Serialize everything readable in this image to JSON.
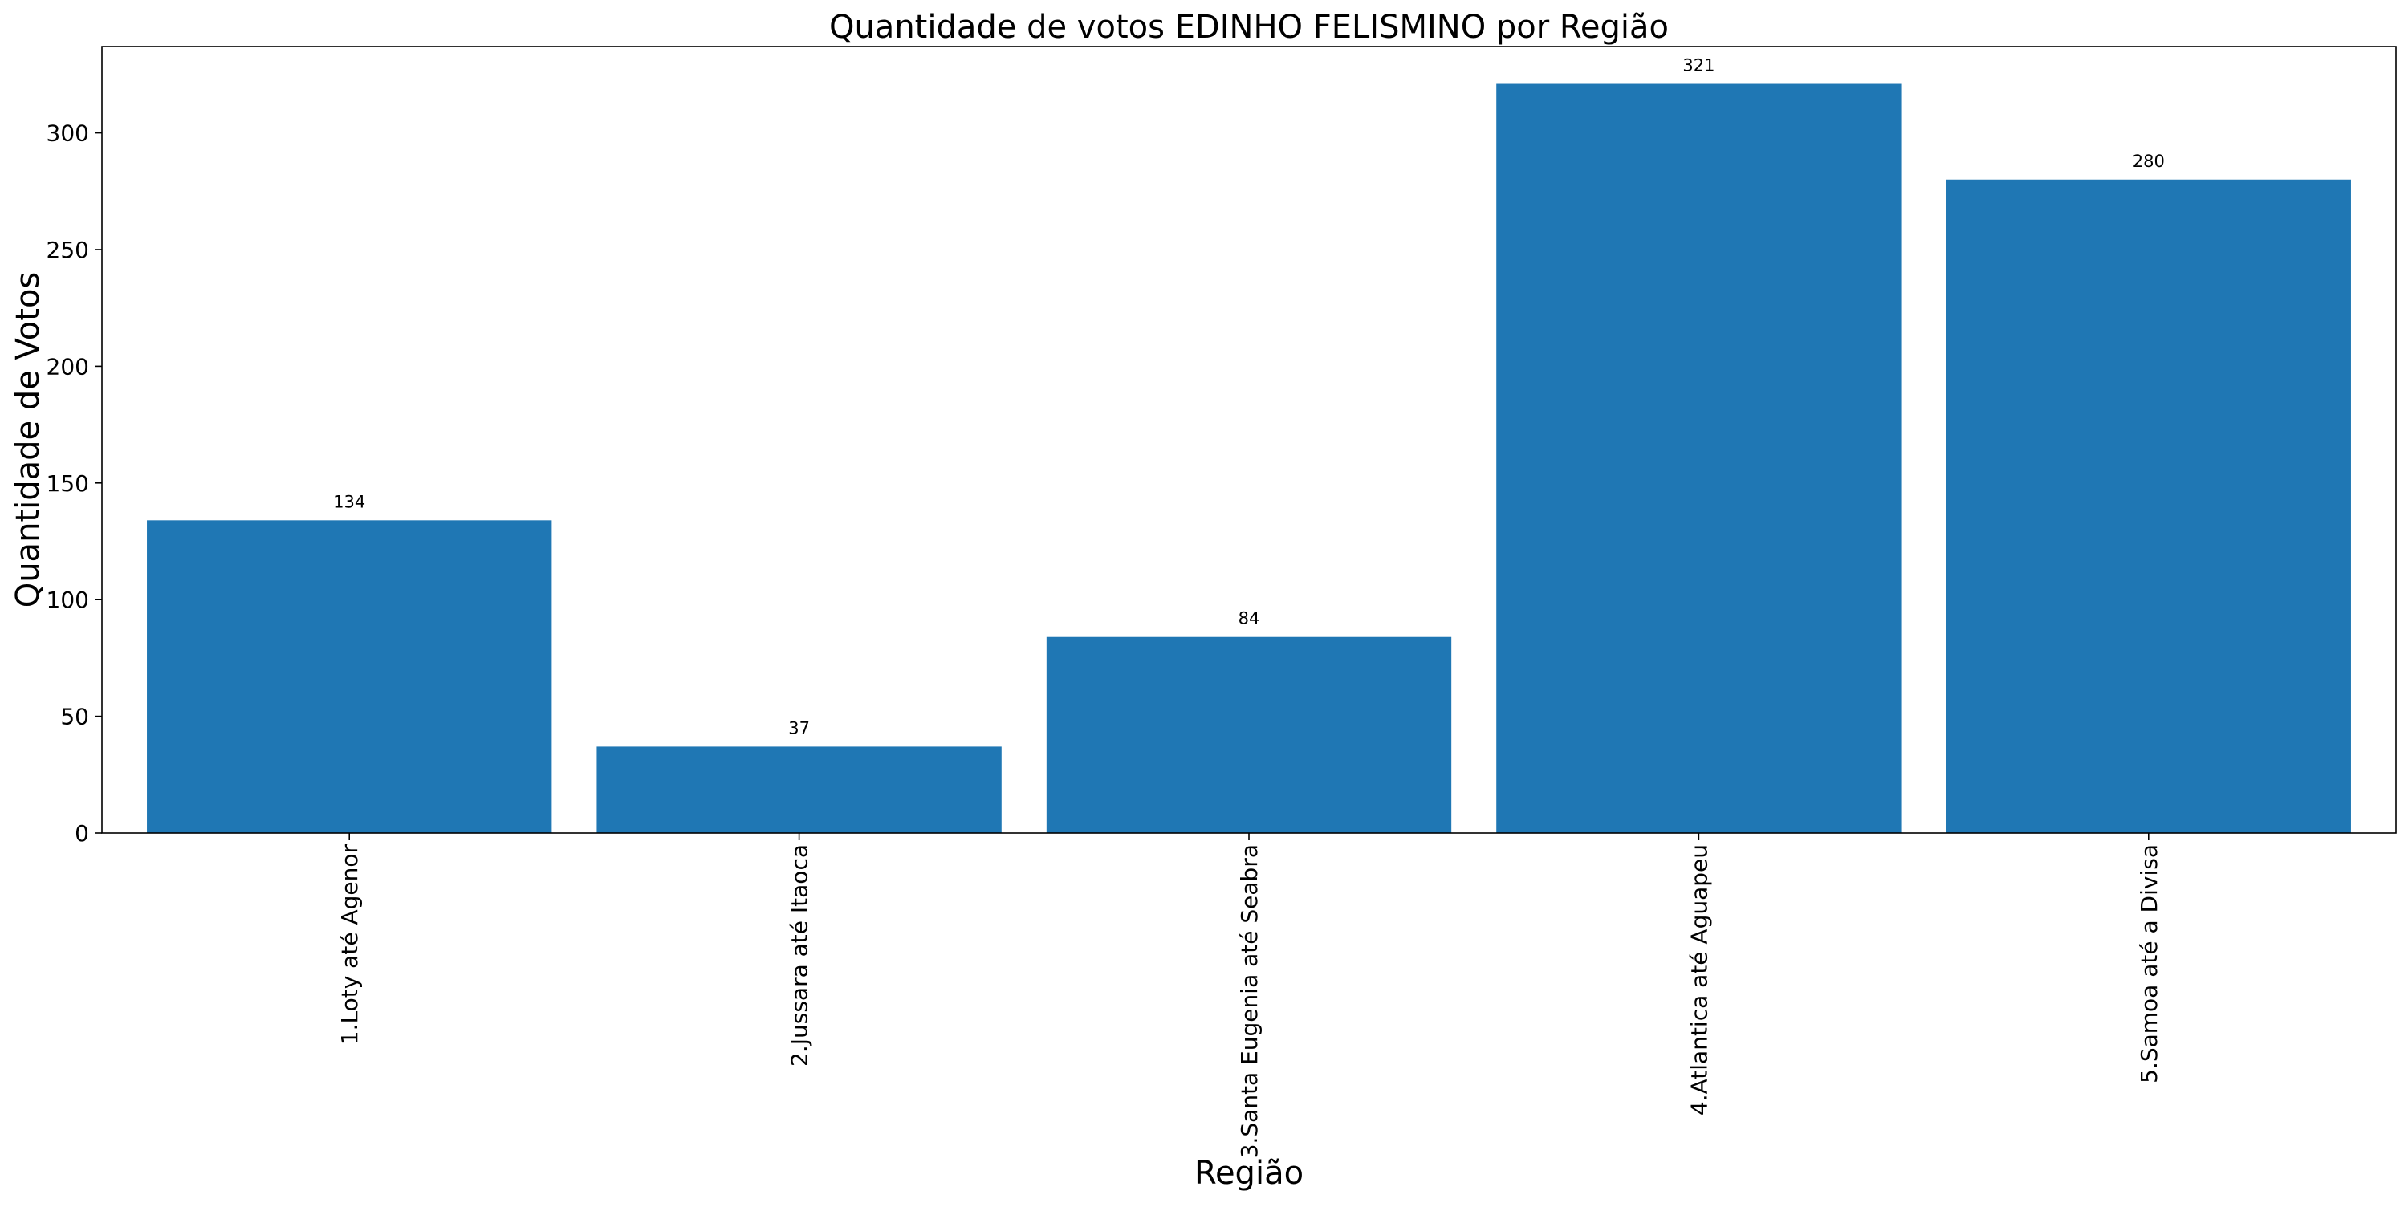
{
  "chart_data": {
    "type": "bar",
    "title": "Quantidade de votos EDINHO FELISMINO por Região",
    "xlabel": "Região",
    "ylabel": "Quantidade de Votos",
    "categories": [
      "1.Loty até Agenor",
      "2.Jussara até Itaoca",
      "3.Santa Eugenia até Seabra",
      "4.Atlantica até Aguapeu",
      "5.Samoa até a Divisa"
    ],
    "values": [
      134,
      37,
      84,
      321,
      280
    ],
    "data_labels": [
      "134",
      "37",
      "84",
      "321",
      "280"
    ],
    "yticks": [
      0,
      50,
      100,
      150,
      200,
      250,
      300
    ],
    "ytick_labels": [
      "0",
      "50",
      "100",
      "150",
      "200",
      "250",
      "300"
    ],
    "ylim": [
      0,
      337
    ],
    "grid": false,
    "legend": "none",
    "bar_color": "#1f77b4"
  }
}
